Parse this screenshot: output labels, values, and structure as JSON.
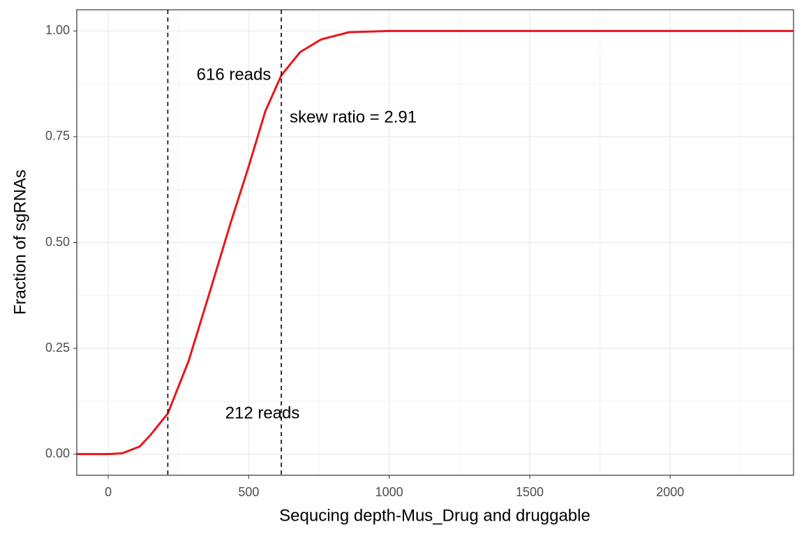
{
  "chart_data": {
    "type": "line",
    "x_label": "Sequcing depth-Mus_Drug and druggable",
    "y_label": "Fraction of sgRNAs",
    "x": [
      -112,
      0,
      50,
      112,
      150,
      212,
      286,
      360,
      435,
      500,
      559,
      616,
      683,
      758,
      857,
      1000,
      2439
    ],
    "series": [
      {
        "color": "#e8151b",
        "values": [
          0,
          0,
          0.002,
          0.018,
          0.045,
          0.096,
          0.22,
          0.38,
          0.545,
          0.68,
          0.81,
          0.895,
          0.95,
          0.98,
          0.997,
          1,
          1
        ]
      }
    ],
    "vlines": [
      212,
      616
    ],
    "annotations": [
      "616 reads",
      "212 reads",
      "skew ratio = 2.91"
    ],
    "xlim": [
      -112,
      2439
    ],
    "ylim": [
      -0.05,
      1.05
    ],
    "xticks": [
      0,
      500,
      1000,
      1500,
      2000
    ],
    "yticks": [
      {
        "value": 0,
        "label": "0.00"
      },
      {
        "value": 0.25,
        "label": "0.25"
      },
      {
        "value": 0.5,
        "label": "0.50"
      },
      {
        "value": 0.75,
        "label": "0.75"
      },
      {
        "value": 1,
        "label": "1.00"
      }
    ],
    "grid": true
  }
}
